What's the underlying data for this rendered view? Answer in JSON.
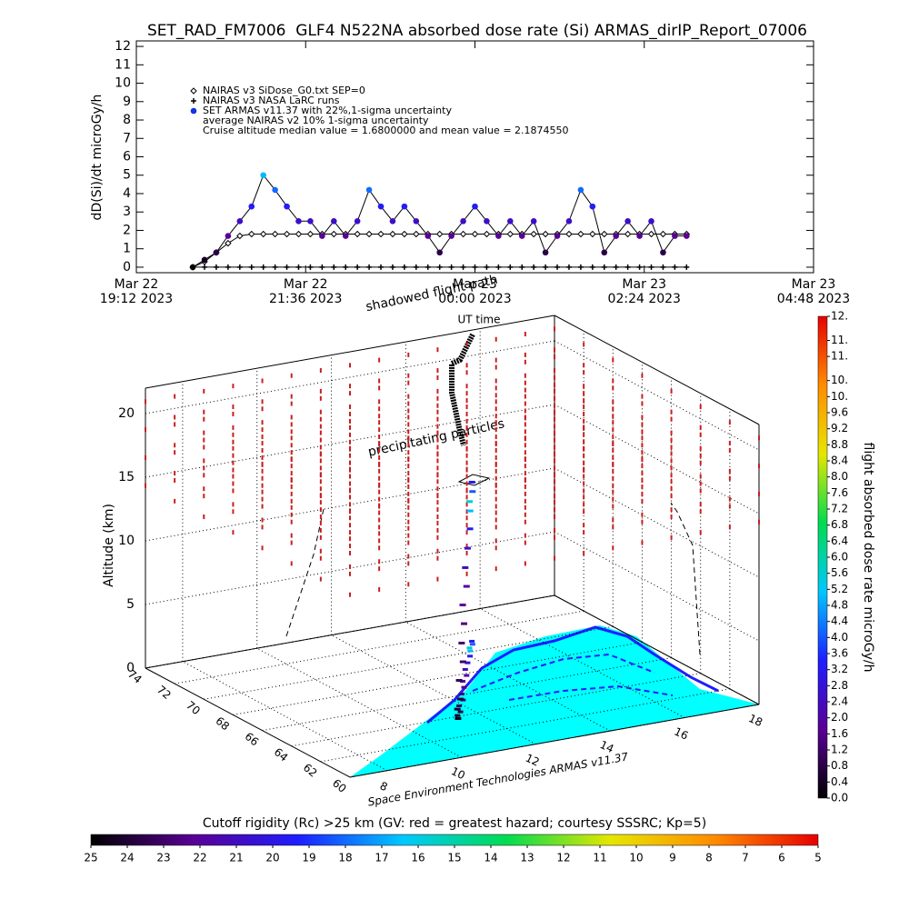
{
  "chart_data": [
    {
      "type": "scatter",
      "title": "SET_RAD_FM7006  GLF4 N522NA absorbed dose rate (Si) ARMAS_dirIP_Report_07006",
      "xlabel": "UT time",
      "ylabel": "dD(Si)/dt microGy/h",
      "x": [
        "2023-03-22T20:00",
        "2023-03-22T20:10",
        "2023-03-22T20:20",
        "2023-03-22T20:30",
        "2023-03-22T20:40",
        "2023-03-22T20:50",
        "2023-03-22T21:00",
        "2023-03-22T21:10",
        "2023-03-22T21:20",
        "2023-03-22T21:30",
        "2023-03-22T21:40",
        "2023-03-22T21:50",
        "2023-03-22T22:00",
        "2023-03-22T22:10",
        "2023-03-22T22:20",
        "2023-03-22T22:30",
        "2023-03-22T22:40",
        "2023-03-22T22:50",
        "2023-03-22T23:00",
        "2023-03-22T23:10",
        "2023-03-22T23:20",
        "2023-03-22T23:30",
        "2023-03-22T23:40",
        "2023-03-22T23:50",
        "2023-03-23T00:00",
        "2023-03-23T00:10",
        "2023-03-23T00:20",
        "2023-03-23T00:30",
        "2023-03-23T00:40",
        "2023-03-23T00:50",
        "2023-03-23T01:00",
        "2023-03-23T01:10",
        "2023-03-23T01:20",
        "2023-03-23T01:30",
        "2023-03-23T01:40",
        "2023-03-23T01:50",
        "2023-03-23T02:00",
        "2023-03-23T02:10",
        "2023-03-23T02:20",
        "2023-03-23T02:30",
        "2023-03-23T02:40",
        "2023-03-23T02:50",
        "2023-03-23T03:00"
      ],
      "xlim": [
        "2023-03-22T19:12",
        "2023-03-23T04:48"
      ],
      "xticks": [
        {
          "value": "2023-03-22T19:12",
          "label": [
            "Mar 22",
            "19:12 2023"
          ]
        },
        {
          "value": "2023-03-22T21:36",
          "label": [
            "Mar 22",
            "21:36 2023"
          ]
        },
        {
          "value": "2023-03-23T00:00",
          "label": [
            "Mar 23",
            "00:00 2023"
          ]
        },
        {
          "value": "2023-03-23T02:24",
          "label": [
            "Mar 23",
            "02:24 2023"
          ]
        },
        {
          "value": "2023-03-23T04:48",
          "label": [
            "Mar 23",
            "04:48 2023"
          ]
        }
      ],
      "ylim": [
        -0.3,
        12.3
      ],
      "yticks": [
        0,
        1,
        2,
        3,
        4,
        5,
        6,
        7,
        8,
        9,
        10,
        11,
        12
      ],
      "series": [
        {
          "name": "NAIRAS v3 SiDose_G0.txt SEP=0",
          "marker": "diamond",
          "color": "#000000",
          "values": [
            0,
            0.3,
            0.8,
            1.3,
            1.7,
            1.8,
            1.8,
            1.8,
            1.8,
            1.8,
            1.8,
            1.8,
            1.8,
            1.8,
            1.8,
            1.8,
            1.8,
            1.8,
            1.8,
            1.8,
            1.8,
            1.8,
            1.8,
            1.8,
            1.8,
            1.8,
            1.8,
            1.8,
            1.8,
            1.8,
            1.8,
            1.8,
            1.8,
            1.8,
            1.8,
            1.8,
            1.8,
            1.8,
            1.8,
            1.8,
            1.8,
            1.8,
            1.8
          ]
        },
        {
          "name": "NAIRAS v3 NASA LaRC runs",
          "marker": "plus",
          "color": "#000000",
          "values": [
            0,
            0,
            0,
            0,
            0,
            0,
            0,
            0,
            0,
            0,
            0,
            0,
            0,
            0,
            0,
            0,
            0,
            0,
            0,
            0,
            0,
            0,
            0,
            0,
            0,
            0,
            0,
            0,
            0,
            0,
            0,
            0,
            0,
            0,
            0,
            0,
            0,
            0,
            0,
            0,
            0,
            0,
            0
          ]
        },
        {
          "name": "SET ARMAS v11.37 with 22%,1-sigma uncertainty",
          "marker": "circle",
          "color": "#1432e6",
          "color_by_value": true,
          "values": [
            0,
            0.4,
            0.8,
            1.7,
            2.5,
            3.3,
            5.0,
            4.2,
            3.3,
            2.5,
            2.5,
            1.7,
            2.5,
            1.7,
            2.5,
            4.2,
            3.3,
            2.5,
            3.3,
            2.5,
            1.7,
            0.8,
            1.7,
            2.5,
            3.3,
            2.5,
            1.7,
            2.5,
            1.7,
            2.5,
            0.8,
            1.7,
            2.5,
            4.2,
            3.3,
            0.8,
            1.7,
            2.5,
            1.7,
            2.5,
            0.8,
            1.7,
            1.7
          ]
        }
      ],
      "annotations": [
        "average NAIRAS v2 10% 1-sigma uncertainty",
        "Cruise altitude median value = 1.6800000 and mean value = 2.1874550"
      ]
    },
    {
      "type": "scatter3d",
      "zlabel": "Altitude (km)",
      "xlim": [
        7,
        18
      ],
      "ylim": [
        60,
        74
      ],
      "zlim": [
        0,
        22
      ],
      "xticks": [
        8,
        10,
        12,
        14,
        16,
        18
      ],
      "yticks": [
        60,
        62,
        64,
        66,
        68,
        70,
        72,
        74
      ],
      "zticks": [
        0,
        5,
        10,
        15,
        20
      ],
      "x": [
        11.4,
        11.5,
        11.7,
        11.9,
        12.2,
        12.4,
        12.7,
        12.9,
        13.2,
        13.4,
        13.7,
        14.0,
        14.2,
        14.3,
        14.5,
        14.6
      ],
      "y": [
        63.8,
        64.1,
        64.4,
        65.0,
        65.5,
        66.1,
        66.7,
        67.3,
        67.8,
        68.4,
        69.0,
        69.6,
        70.1,
        70.4,
        70.7,
        71.0
      ],
      "z": [
        0,
        0.5,
        1,
        2,
        3,
        4,
        5,
        6,
        7,
        8,
        9,
        10,
        11,
        11.5,
        12,
        12.5
      ],
      "values": [
        0.3,
        0.5,
        0.8,
        1.0,
        1.2,
        1.3,
        1.5,
        1.7,
        2.0,
        2.4,
        2.8,
        3.2,
        5.0,
        5.6,
        4.0,
        3.2
      ],
      "annotations": [
        "shadowed flight path",
        "precipitating particles",
        "Space Environment Technologies ARMAS v11.37"
      ]
    },
    {
      "type": "colorbar",
      "orientation": "vertical",
      "title": "flight absorbed dose rate microGy/h",
      "zlim": [
        0,
        12
      ],
      "ticks": [
        {
          "value": 0,
          "label": "0.0"
        },
        0.4,
        0.8,
        1.2,
        1.6,
        {
          "value": 2,
          "label": "2.0"
        },
        2.4,
        2.8,
        3.2,
        3.6,
        {
          "value": 4,
          "label": "4.0"
        },
        4.4,
        4.8,
        5.2,
        5.6,
        {
          "value": 6,
          "label": "6.0"
        },
        6.4,
        6.8,
        7.2,
        7.6,
        {
          "value": 8,
          "label": "8.0"
        },
        8.4,
        8.8,
        9.2,
        9.6,
        {
          "value": 10,
          "label": "10."
        },
        {
          "value": 10.4,
          "label": "10."
        },
        {
          "value": 11,
          "label": "11."
        },
        {
          "value": 11.4,
          "label": "11."
        },
        {
          "value": 12,
          "label": "12."
        }
      ],
      "colors": [
        "#000000",
        "#5a0096",
        "#1e1eff",
        "#00c8ff",
        "#00dc50",
        "#e6e600",
        "#ff8c00",
        "#e60000"
      ]
    },
    {
      "type": "colorbar",
      "orientation": "horizontal",
      "title": "Cutoff rigidity (Rc) >25 km (GV: red = greatest hazard; courtesy SSSRC; Kp=5)",
      "zlim": [
        25,
        5
      ],
      "ticks": [
        25,
        24,
        23,
        22,
        21,
        20,
        19,
        18,
        17,
        16,
        15,
        14,
        13,
        12,
        11,
        10,
        9,
        8,
        7,
        6,
        5
      ],
      "colors": [
        "#000000",
        "#5a0096",
        "#1e1eff",
        "#00c8ff",
        "#00dc50",
        "#e6e600",
        "#ff8c00",
        "#e60000"
      ]
    }
  ]
}
